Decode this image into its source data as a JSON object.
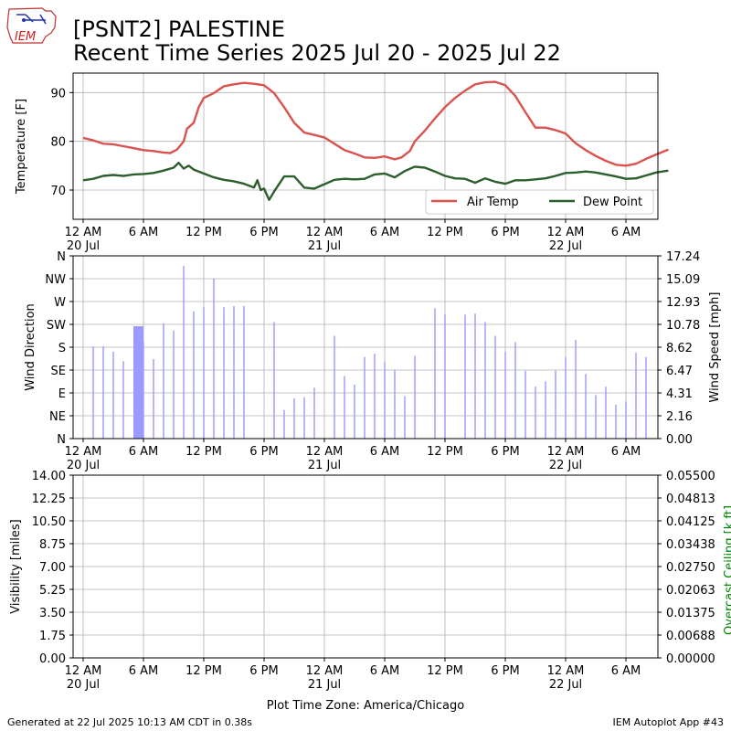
{
  "header": {
    "logo_text": "IEM",
    "title_line1": "[PSNT2] PALESTINE",
    "title_line2": "Recent Time Series 2025 Jul 20 - 2025 Jul 22"
  },
  "footer": {
    "generated": "Generated at 22 Jul 2025 10:13 AM CDT in 0.38s",
    "app": "IEM Autoplot App #43"
  },
  "colors": {
    "air_temp": "#d9534f",
    "dew_point": "#2d5e2d",
    "wind_bar": "#9a9aff",
    "ceiling_label": "#008000",
    "grid": "#b0b0b0"
  },
  "chart_data": [
    {
      "type": "line",
      "panel": "temperature",
      "ylabel": "Temperature [F]",
      "ylim": [
        64,
        94
      ],
      "yticks": [
        70,
        80,
        90
      ],
      "grid": true,
      "legend_position": "bottom-right",
      "x_start": "2025-07-20 00:00",
      "x_end": "2025-07-22 10:13",
      "x_tick_labels": [
        "12 AM\n20 Jul",
        "6 AM",
        "12 PM",
        "6 PM",
        "12 AM\n21 Jul",
        "6 AM",
        "12 PM",
        "6 PM",
        "12 AM\n22 Jul",
        "6 AM"
      ],
      "series": [
        {
          "name": "Air Temp",
          "color": "#d9534f",
          "points": [
            [
              "2025-07-20 00:00",
              80.7
            ],
            [
              "2025-07-20 01:00",
              80.2
            ],
            [
              "2025-07-20 02:00",
              79.5
            ],
            [
              "2025-07-20 03:00",
              79.4
            ],
            [
              "2025-07-20 04:00",
              79.0
            ],
            [
              "2025-07-20 05:00",
              78.6
            ],
            [
              "2025-07-20 06:00",
              78.2
            ],
            [
              "2025-07-20 07:00",
              78.0
            ],
            [
              "2025-07-20 08:00",
              77.7
            ],
            [
              "2025-07-20 08:40",
              77.6
            ],
            [
              "2025-07-20 09:20",
              78.3
            ],
            [
              "2025-07-20 10:00",
              80.0
            ],
            [
              "2025-07-20 10:20",
              82.6
            ],
            [
              "2025-07-20 11:00",
              83.8
            ],
            [
              "2025-07-20 11:30",
              87.0
            ],
            [
              "2025-07-20 12:00",
              88.9
            ],
            [
              "2025-07-20 13:00",
              89.9
            ],
            [
              "2025-07-20 14:00",
              91.3
            ],
            [
              "2025-07-20 15:00",
              91.7
            ],
            [
              "2025-07-20 16:00",
              92.0
            ],
            [
              "2025-07-20 17:00",
              91.8
            ],
            [
              "2025-07-20 18:00",
              91.5
            ],
            [
              "2025-07-20 19:00",
              89.9
            ],
            [
              "2025-07-20 20:00",
              87.0
            ],
            [
              "2025-07-20 21:00",
              83.8
            ],
            [
              "2025-07-20 22:00",
              81.8
            ],
            [
              "2025-07-20 23:00",
              81.3
            ],
            [
              "2025-07-21 00:00",
              80.8
            ],
            [
              "2025-07-21 01:00",
              79.5
            ],
            [
              "2025-07-21 02:00",
              78.2
            ],
            [
              "2025-07-21 03:00",
              77.5
            ],
            [
              "2025-07-21 04:00",
              76.7
            ],
            [
              "2025-07-21 05:00",
              76.6
            ],
            [
              "2025-07-21 06:00",
              76.9
            ],
            [
              "2025-07-21 07:00",
              76.3
            ],
            [
              "2025-07-21 07:40",
              76.7
            ],
            [
              "2025-07-21 08:30",
              78.0
            ],
            [
              "2025-07-21 09:00",
              80.0
            ],
            [
              "2025-07-21 10:00",
              82.2
            ],
            [
              "2025-07-21 11:00",
              84.7
            ],
            [
              "2025-07-21 12:00",
              87.0
            ],
            [
              "2025-07-21 13:00",
              88.9
            ],
            [
              "2025-07-21 14:00",
              90.4
            ],
            [
              "2025-07-21 15:00",
              91.7
            ],
            [
              "2025-07-21 16:00",
              92.1
            ],
            [
              "2025-07-21 17:00",
              92.2
            ],
            [
              "2025-07-21 18:00",
              91.5
            ],
            [
              "2025-07-21 19:00",
              89.3
            ],
            [
              "2025-07-21 20:00",
              86.0
            ],
            [
              "2025-07-21 21:00",
              82.8
            ],
            [
              "2025-07-21 22:00",
              82.8
            ],
            [
              "2025-07-21 23:00",
              82.3
            ],
            [
              "2025-07-22 00:00",
              81.6
            ],
            [
              "2025-07-22 01:00",
              79.6
            ],
            [
              "2025-07-22 02:00",
              78.2
            ],
            [
              "2025-07-22 03:00",
              77.0
            ],
            [
              "2025-07-22 04:00",
              76.0
            ],
            [
              "2025-07-22 05:00",
              75.2
            ],
            [
              "2025-07-22 06:00",
              75.0
            ],
            [
              "2025-07-22 07:00",
              75.4
            ],
            [
              "2025-07-22 08:00",
              76.4
            ],
            [
              "2025-07-22 09:00",
              77.3
            ],
            [
              "2025-07-22 10:13",
              78.3
            ]
          ]
        },
        {
          "name": "Dew Point",
          "color": "#2d5e2d",
          "points": [
            [
              "2025-07-20 00:00",
              72.0
            ],
            [
              "2025-07-20 01:00",
              72.3
            ],
            [
              "2025-07-20 02:00",
              72.9
            ],
            [
              "2025-07-20 03:00",
              73.1
            ],
            [
              "2025-07-20 04:00",
              72.9
            ],
            [
              "2025-07-20 05:00",
              73.2
            ],
            [
              "2025-07-20 06:00",
              73.3
            ],
            [
              "2025-07-20 07:00",
              73.5
            ],
            [
              "2025-07-20 08:00",
              74.0
            ],
            [
              "2025-07-20 09:00",
              74.6
            ],
            [
              "2025-07-20 09:30",
              75.6
            ],
            [
              "2025-07-20 10:00",
              74.4
            ],
            [
              "2025-07-20 10:30",
              75.0
            ],
            [
              "2025-07-20 11:00",
              74.2
            ],
            [
              "2025-07-20 12:00",
              73.4
            ],
            [
              "2025-07-20 13:00",
              72.6
            ],
            [
              "2025-07-20 14:00",
              72.1
            ],
            [
              "2025-07-20 15:00",
              71.8
            ],
            [
              "2025-07-20 16:00",
              71.3
            ],
            [
              "2025-07-20 17:00",
              70.5
            ],
            [
              "2025-07-20 17:20",
              72.0
            ],
            [
              "2025-07-20 17:40",
              70.0
            ],
            [
              "2025-07-20 18:00",
              70.3
            ],
            [
              "2025-07-20 18:30",
              68.0
            ],
            [
              "2025-07-20 19:00",
              69.7
            ],
            [
              "2025-07-20 20:00",
              72.8
            ],
            [
              "2025-07-20 21:00",
              72.8
            ],
            [
              "2025-07-20 22:00",
              70.5
            ],
            [
              "2025-07-20 23:00",
              70.3
            ],
            [
              "2025-07-21 00:00",
              71.2
            ],
            [
              "2025-07-21 01:00",
              72.1
            ],
            [
              "2025-07-21 02:00",
              72.3
            ],
            [
              "2025-07-21 03:00",
              72.2
            ],
            [
              "2025-07-21 04:00",
              72.3
            ],
            [
              "2025-07-21 05:00",
              73.2
            ],
            [
              "2025-07-21 06:00",
              73.4
            ],
            [
              "2025-07-21 07:00",
              72.6
            ],
            [
              "2025-07-21 08:00",
              73.9
            ],
            [
              "2025-07-21 09:00",
              74.8
            ],
            [
              "2025-07-21 10:00",
              74.6
            ],
            [
              "2025-07-21 11:00",
              73.8
            ],
            [
              "2025-07-21 12:00",
              72.9
            ],
            [
              "2025-07-21 13:00",
              72.4
            ],
            [
              "2025-07-21 14:00",
              72.3
            ],
            [
              "2025-07-21 15:00",
              71.5
            ],
            [
              "2025-07-21 16:00",
              72.4
            ],
            [
              "2025-07-21 17:00",
              71.7
            ],
            [
              "2025-07-21 18:00",
              71.3
            ],
            [
              "2025-07-21 19:00",
              72.0
            ],
            [
              "2025-07-21 20:00",
              72.0
            ],
            [
              "2025-07-21 21:00",
              72.2
            ],
            [
              "2025-07-21 22:00",
              72.4
            ],
            [
              "2025-07-21 23:00",
              72.9
            ],
            [
              "2025-07-22 00:00",
              73.5
            ],
            [
              "2025-07-22 01:00",
              73.6
            ],
            [
              "2025-07-22 02:00",
              73.8
            ],
            [
              "2025-07-22 03:00",
              73.6
            ],
            [
              "2025-07-22 04:00",
              73.2
            ],
            [
              "2025-07-22 05:00",
              72.8
            ],
            [
              "2025-07-22 06:00",
              72.3
            ],
            [
              "2025-07-22 07:00",
              72.4
            ],
            [
              "2025-07-22 08:00",
              73.0
            ],
            [
              "2025-07-22 09:00",
              73.6
            ],
            [
              "2025-07-22 10:13",
              74.0
            ]
          ]
        }
      ]
    },
    {
      "type": "bar",
      "panel": "wind",
      "ylabel_left": "Wind Direction",
      "ylabel_right": "Wind Speed [mph]",
      "direction_ticks": [
        "N",
        "NE",
        "E",
        "SE",
        "S",
        "SW",
        "W",
        "NW",
        "N"
      ],
      "speed_ticks": [
        "0.00",
        "2.16",
        "4.31",
        "6.47",
        "8.62",
        "10.78",
        "12.93",
        "15.09",
        "17.24"
      ],
      "ylim": [
        0,
        17.24
      ],
      "grid": true,
      "series": [
        {
          "name": "Wind Speed",
          "color": "#9a9aff",
          "points": [
            [
              "2025-07-20 01:00",
              8.7
            ],
            [
              "2025-07-20 02:00",
              8.7
            ],
            [
              "2025-07-20 03:00",
              8.2
            ],
            [
              "2025-07-20 04:00",
              7.3
            ],
            [
              "2025-07-20 05:00",
              10.6
            ],
            [
              "2025-07-20 06:00",
              9.1
            ],
            [
              "2025-07-20 07:00",
              7.5
            ],
            [
              "2025-07-20 08:00",
              10.9
            ],
            [
              "2025-07-20 09:00",
              10.2
            ],
            [
              "2025-07-20 10:00",
              16.3
            ],
            [
              "2025-07-20 11:00",
              12.0
            ],
            [
              "2025-07-20 12:00",
              12.4
            ],
            [
              "2025-07-20 13:00",
              15.1
            ],
            [
              "2025-07-20 14:00",
              12.4
            ],
            [
              "2025-07-20 15:00",
              12.5
            ],
            [
              "2025-07-20 16:00",
              12.5
            ],
            [
              "2025-07-20 19:00",
              11.0
            ],
            [
              "2025-07-20 20:00",
              2.7
            ],
            [
              "2025-07-20 21:00",
              3.8
            ],
            [
              "2025-07-20 22:00",
              3.9
            ],
            [
              "2025-07-20 23:00",
              4.8
            ],
            [
              "2025-07-21 01:00",
              9.7
            ],
            [
              "2025-07-21 02:00",
              5.9
            ],
            [
              "2025-07-21 03:00",
              5.1
            ],
            [
              "2025-07-21 04:00",
              7.7
            ],
            [
              "2025-07-21 05:00",
              8.0
            ],
            [
              "2025-07-21 06:00",
              7.2
            ],
            [
              "2025-07-21 07:00",
              6.5
            ],
            [
              "2025-07-21 08:00",
              4.0
            ],
            [
              "2025-07-21 09:00",
              7.8
            ],
            [
              "2025-07-21 11:00",
              12.3
            ],
            [
              "2025-07-21 12:00",
              11.7
            ],
            [
              "2025-07-21 14:00",
              11.7
            ],
            [
              "2025-07-21 15:00",
              11.8
            ],
            [
              "2025-07-21 16:00",
              11.0
            ],
            [
              "2025-07-21 17:00",
              9.7
            ],
            [
              "2025-07-21 18:00",
              8.2
            ],
            [
              "2025-07-21 19:00",
              9.1
            ],
            [
              "2025-07-21 20:00",
              6.4
            ],
            [
              "2025-07-21 21:00",
              4.9
            ],
            [
              "2025-07-21 22:00",
              5.4
            ],
            [
              "2025-07-21 23:00",
              6.4
            ],
            [
              "2025-07-22 00:00",
              7.7
            ],
            [
              "2025-07-22 01:00",
              9.3
            ],
            [
              "2025-07-22 02:00",
              6.1
            ],
            [
              "2025-07-22 03:00",
              4.1
            ],
            [
              "2025-07-22 04:00",
              4.9
            ],
            [
              "2025-07-22 05:00",
              3.2
            ],
            [
              "2025-07-22 06:00",
              3.5
            ],
            [
              "2025-07-22 07:00",
              8.1
            ],
            [
              "2025-07-22 08:00",
              7.7
            ]
          ]
        }
      ]
    },
    {
      "type": "line",
      "panel": "visibility",
      "ylabel_left": "Visibility [miles]",
      "ylabel_right": "Overcast Ceiling [k ft]",
      "ylim_left": [
        0,
        14
      ],
      "ylim_right": [
        0,
        0.055
      ],
      "yticks_left": [
        "0.00",
        "1.75",
        "3.50",
        "5.25",
        "7.00",
        "8.75",
        "10.50",
        "12.25",
        "14.00"
      ],
      "yticks_right": [
        "0.00000",
        "0.00688",
        "0.01375",
        "0.02063",
        "0.02750",
        "0.03438",
        "0.04125",
        "0.04813",
        "0.05500"
      ],
      "xlabel": "Plot Time Zone: America/Chicago",
      "grid": true,
      "series": []
    }
  ]
}
